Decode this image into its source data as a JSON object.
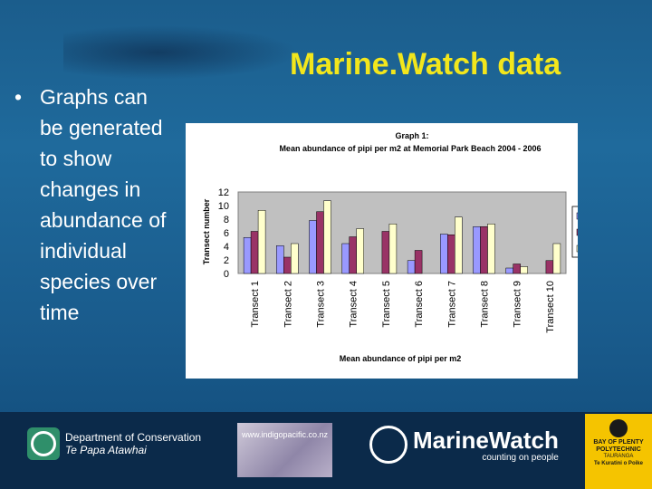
{
  "slide": {
    "title": "Marine.Watch data",
    "bullet": "Graphs can be generated to show changes in abundance of individual species over time"
  },
  "footer": {
    "doc_line1": "Department of Conservation",
    "doc_line2": "Te Papa Atawhai",
    "photo_url": "www.indigopacific.co.nz",
    "marinewatch_name": "MarineWatch",
    "marinewatch_tag": "counting on people",
    "poly_line1": "BAY OF PLENTY",
    "poly_line2": "POLYTECHNIC",
    "poly_line3": "TAURANGA",
    "poly_line4": "Te Kuratini o Poike"
  },
  "chart_data": {
    "type": "bar",
    "title": "Graph 1:",
    "subtitle": "Mean abundance of pipi per m2 at Memorial Park Beach 2004 - 2006",
    "xlabel": "Mean abundance of pipi per m2",
    "ylabel": "Transect number",
    "ylim": [
      0,
      12
    ],
    "yticks": [
      "12",
      "10",
      "8",
      "6",
      "4",
      "2",
      "0"
    ],
    "categories": [
      "Transect 1",
      "Transect 2",
      "Transect 3",
      "Transect 4",
      "Transect 5",
      "Transect 6",
      "Transect 7",
      "Transect 8",
      "Transect 9",
      "Transect 10"
    ],
    "series": [
      {
        "name": "2006",
        "color": "#9999ff",
        "values": [
          5.3,
          4.1,
          7.8,
          4.4,
          0,
          1.9,
          5.8,
          6.9,
          0.8,
          0
        ]
      },
      {
        "name": "2005",
        "color": "#993366",
        "values": [
          6.2,
          2.4,
          9.1,
          5.4,
          6.2,
          3.4,
          5.7,
          6.9,
          1.4,
          1.9
        ]
      },
      {
        "name": "2004",
        "color": "#ffffcc",
        "values": [
          9.3,
          4.4,
          10.7,
          6.6,
          7.3,
          0,
          8.3,
          7.3,
          1.0,
          4.4
        ]
      }
    ],
    "legend_position": "right",
    "plot_background": "#c0c0c0",
    "grid": false
  }
}
